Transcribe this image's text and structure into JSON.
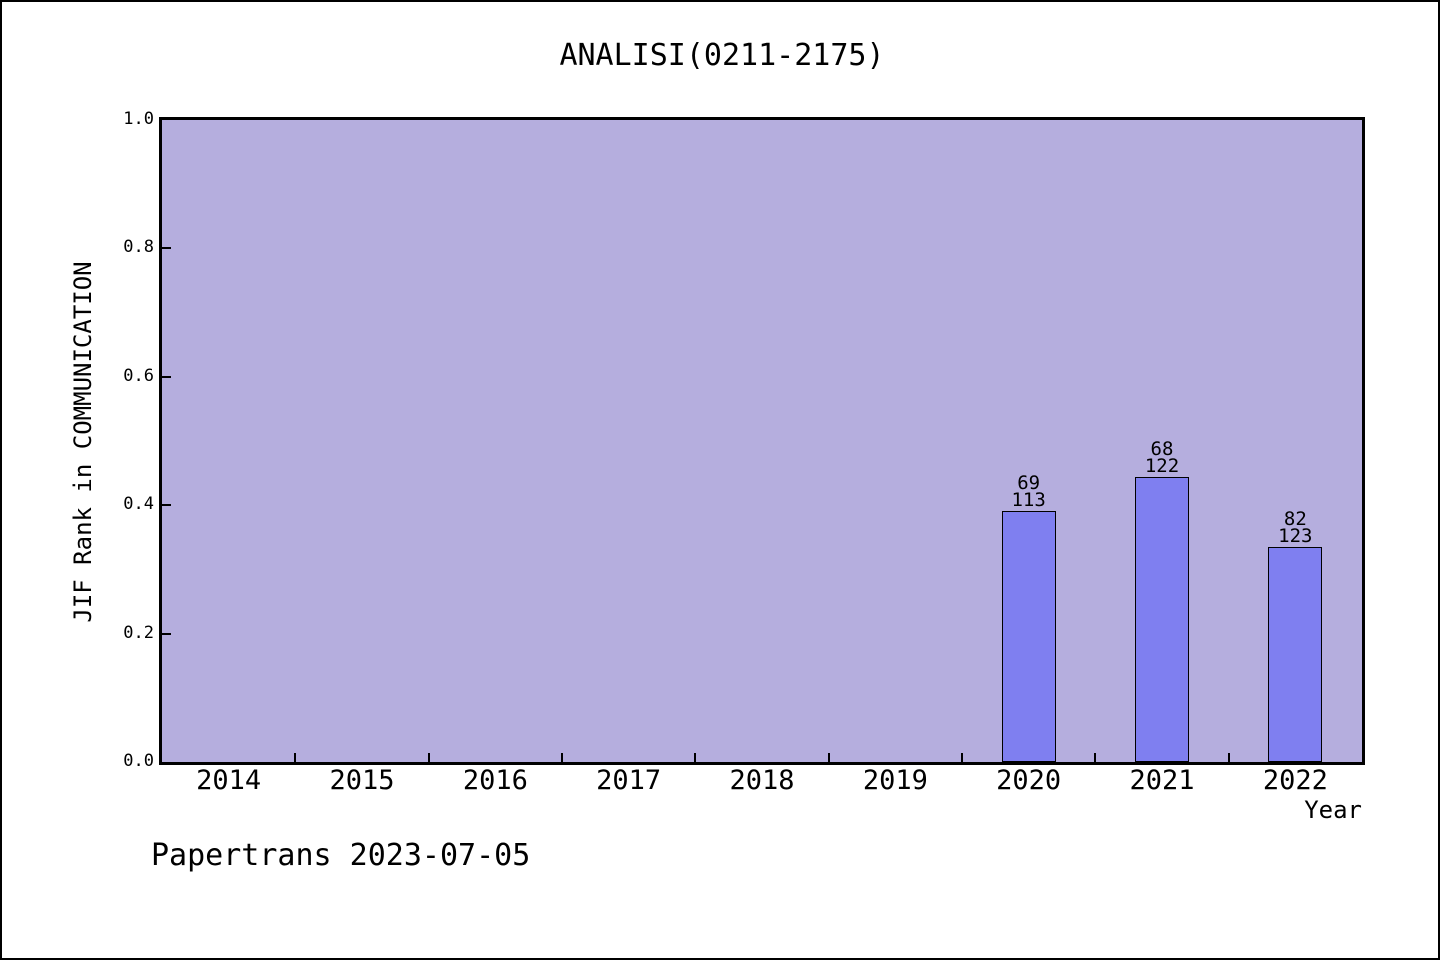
{
  "chart_data": {
    "type": "bar",
    "title": "ANALISI(0211-2175)",
    "xlabel": "Year",
    "ylabel": "JIF Rank in COMMUNICATION",
    "categories": [
      "2014",
      "2015",
      "2016",
      "2017",
      "2018",
      "2019",
      "2020",
      "2021",
      "2022"
    ],
    "yticks": [
      "0.0",
      "0.2",
      "0.4",
      "0.6",
      "0.8",
      "1.0"
    ],
    "ylim": [
      0.0,
      1.0
    ],
    "grid": false,
    "legend": "none",
    "bars": [
      {
        "category": "2020",
        "rank": 69,
        "total": 113,
        "value": 0.3894,
        "label_lines": [
          "69",
          "113"
        ]
      },
      {
        "category": "2021",
        "rank": 68,
        "total": 122,
        "value": 0.4426,
        "label_lines": [
          "68",
          "122"
        ]
      },
      {
        "category": "2022",
        "rank": 82,
        "total": 123,
        "value": 0.3333,
        "label_lines": [
          "82",
          "123"
        ]
      }
    ],
    "colors": {
      "plot_background": "#b5aede",
      "bar_fill": "#7f7ff0",
      "bar_border": "#000000",
      "axis": "#000000",
      "figure_background": "#ffffff"
    }
  },
  "footer": {
    "caption": "Papertrans 2023-07-05"
  }
}
